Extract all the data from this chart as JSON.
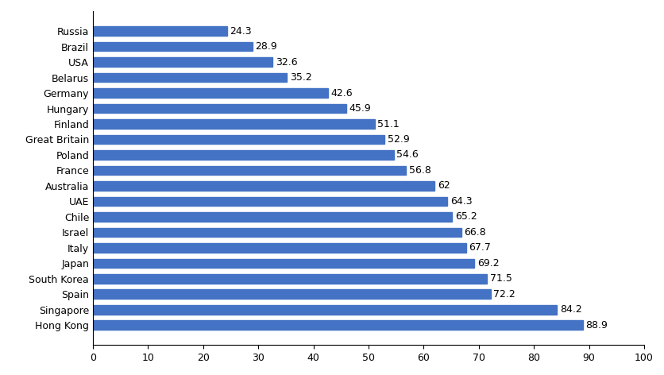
{
  "categories": [
    "Hong Kong",
    "Singapore",
    "Spain",
    "South Korea",
    "Japan",
    "Italy",
    "Israel",
    "Chile",
    "UAE",
    "Australia",
    "France",
    "Poland",
    "Great Britain",
    "Finland",
    "Hungary",
    "Germany",
    "Belarus",
    "USA",
    "Brazil",
    "Russia"
  ],
  "values": [
    88.9,
    84.2,
    72.2,
    71.5,
    69.2,
    67.7,
    66.8,
    65.2,
    64.3,
    62.0,
    56.8,
    54.6,
    52.9,
    51.1,
    45.9,
    42.6,
    35.2,
    32.6,
    28.9,
    24.3
  ],
  "value_labels": [
    "88.9",
    "84.2",
    "72.2",
    "71.5",
    "69.2",
    "67.7",
    "66.8",
    "65.2",
    "64.3",
    "62",
    "56.8",
    "54.6",
    "52.9",
    "51.1",
    "45.9",
    "42.6",
    "35.2",
    "32.6",
    "28.9",
    "24.3"
  ],
  "bar_color": "#4472C4",
  "xlim": [
    0,
    100
  ],
  "xticks": [
    0,
    10,
    20,
    30,
    40,
    50,
    60,
    70,
    80,
    90,
    100
  ],
  "bar_height": 0.6,
  "label_fontsize": 9,
  "tick_fontsize": 9,
  "value_label_fontsize": 9,
  "background_color": "#ffffff",
  "spine_color": "#000000"
}
